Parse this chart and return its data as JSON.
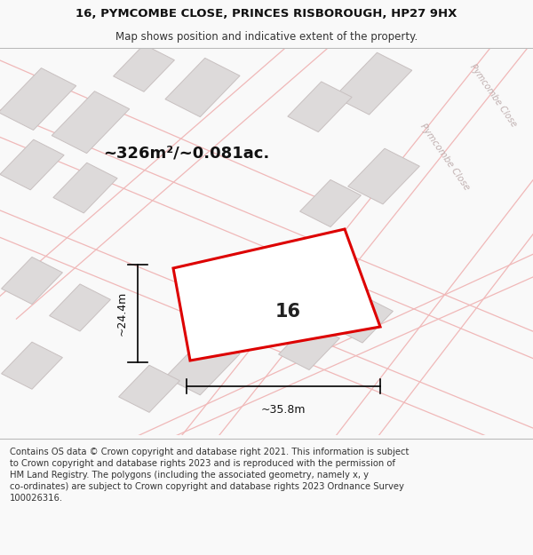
{
  "title_line1": "16, PYMCOMBE CLOSE, PRINCES RISBOROUGH, HP27 9HX",
  "title_line2": "Map shows position and indicative extent of the property.",
  "area_text": "~326m²/~0.081ac.",
  "plot_number": "16",
  "dim_width": "~35.8m",
  "dim_height": "~24.4m",
  "footer_line1": "Contains OS data © Crown copyright and database right 2021. This information is subject",
  "footer_line2": "to Crown copyright and database rights 2023 and is reproduced with the permission of",
  "footer_line3": "HM Land Registry. The polygons (including the associated geometry, namely x, y",
  "footer_line4": "co-ordinates) are subject to Crown copyright and database rights 2023 Ordnance Survey",
  "footer_line5": "100026316.",
  "bg_color": "#f9f9f9",
  "map_bg": "#eeecec",
  "road_color": "#f0b8b8",
  "building_color": "#dddada",
  "building_edge": "#c8c0c0",
  "plot_color": "#dd0000",
  "plot_fill": "#ffffff",
  "street_label_color": "#c0b0b0",
  "title_fontsize": 9.5,
  "subtitle_fontsize": 8.5,
  "footer_fontsize": 7.2,
  "area_fontsize": 13,
  "plot_num_fontsize": 15,
  "dim_fontsize": 9
}
